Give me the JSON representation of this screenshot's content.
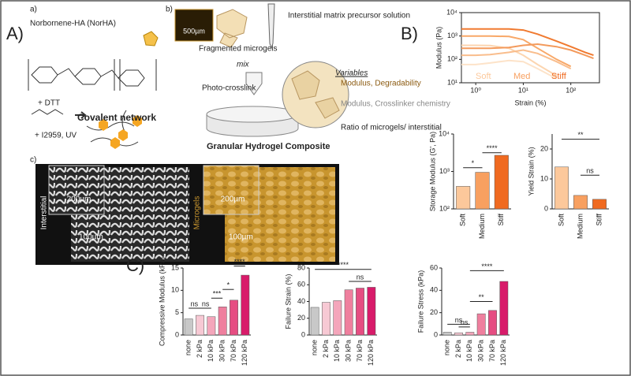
{
  "diagram": {
    "panel_A": "A)",
    "panel_a": "a)",
    "norha": "Norbornene-HA (NorHA)",
    "dtt": "+ DTT",
    "covalent": "Covalent network",
    "uv": "+ I2959, UV",
    "panel_b": "b)",
    "scale_500": "500µm",
    "fragmented": "Fragmented microgels",
    "mix": "mix",
    "precursor": "Interstitial matrix precursor solution",
    "photo": "Photo-crosslink",
    "variables": "Variables",
    "var_microgel": "Modulus, Degradability",
    "var_interstitial": "Modulus, Crosslinker chemistry",
    "var_ratio": "Ratio of microgels/ interstitial",
    "composite": "Granular Hydrogel Composite",
    "panel_c": "c)",
    "interstitial": "Interstitial",
    "inset_scale_1": "200µm",
    "scale_1": "100µm",
    "microgels": "Microgels",
    "inset_scale_2": "200µm",
    "scale_2": "100µm",
    "panel_B": "B)",
    "panel_C": "C)"
  },
  "chart_data": [
    {
      "type": "line",
      "xlabel": "Strain (%)",
      "ylabel": "Modulus (Pa)",
      "xscale": "log",
      "yscale": "log",
      "xlim": [
        0.5,
        400
      ],
      "ylim": [
        10,
        10000
      ],
      "xticks": [
        {
          "value": 1,
          "label": "10⁰"
        },
        {
          "value": 10,
          "label": "10¹"
        },
        {
          "value": 100,
          "label": "10²"
        }
      ],
      "yticks": [
        {
          "value": 10,
          "label": "10¹"
        },
        {
          "value": 100,
          "label": "10²"
        },
        {
          "value": 1000,
          "label": "10³"
        },
        {
          "value": 10000,
          "label": "10⁴"
        }
      ],
      "x": [
        0.5,
        1,
        2,
        5,
        10,
        20,
        50,
        100,
        200,
        300
      ],
      "series": [
        {
          "color": "#fcd5b0",
          "values": [
            400,
            400,
            390,
            300,
            150,
            60,
            20,
            null,
            null,
            null
          ]
        },
        {
          "color": "#fde3c9",
          "values": [
            60,
            60,
            70,
            90,
            80,
            40,
            15,
            null,
            null,
            null
          ]
        },
        {
          "color": "#f8a868",
          "values": [
            1000,
            1000,
            1000,
            950,
            700,
            300,
            100,
            50,
            null,
            null
          ]
        },
        {
          "color": "#f9bd8c",
          "values": [
            150,
            150,
            160,
            200,
            250,
            180,
            80,
            40,
            null,
            null
          ]
        },
        {
          "color": "#f07a30",
          "values": [
            2000,
            2000,
            2000,
            2000,
            1800,
            1200,
            600,
            350,
            200,
            150
          ]
        },
        {
          "color": "#f39a5c",
          "values": [
            300,
            300,
            300,
            320,
            400,
            450,
            350,
            250,
            150,
            110
          ]
        }
      ],
      "annotations": [
        {
          "text": "Soft",
          "color": "#fcc89b"
        },
        {
          "text": "Med",
          "color": "#f8a060"
        },
        {
          "text": "Stiff",
          "color": "#f06a20"
        }
      ]
    },
    {
      "type": "bar",
      "ylabel": "Storage Modulus (G', Pa)",
      "yscale": "log",
      "ylim": [
        100,
        10000
      ],
      "yticks": [
        {
          "value": 100,
          "label": "10²"
        },
        {
          "value": 1000,
          "label": "10³"
        },
        {
          "value": 10000,
          "label": "10⁴"
        }
      ],
      "categories": [
        "Soft",
        "Medium",
        "Stiff"
      ],
      "values": [
        400,
        950,
        2700
      ],
      "colors": [
        "#fcc89b",
        "#f8a060",
        "#f06a20"
      ],
      "annotations": [
        {
          "text": "*"
        },
        {
          "text": "****"
        }
      ]
    },
    {
      "type": "bar",
      "ylabel": "Yield Strain (%)",
      "ylim": [
        0,
        25
      ],
      "yticks": [
        0,
        10,
        20
      ],
      "categories": [
        "Soft",
        "Medium",
        "Stiff"
      ],
      "values": [
        14,
        4.5,
        3.2
      ],
      "colors": [
        "#fcc89b",
        "#f8a060",
        "#f06a20"
      ],
      "annotations": [
        {
          "text": "**"
        },
        {
          "text": "ns"
        }
      ]
    },
    {
      "type": "bar",
      "ylabel": "Compressive Modulus (kPa)",
      "ylim": [
        0,
        15
      ],
      "yticks": [
        0,
        5,
        10,
        15
      ],
      "categories": [
        "none",
        "2 kPa",
        "10 kPa",
        "30 kPa",
        "70 kPa",
        "120 kPa"
      ],
      "values": [
        3.6,
        4.4,
        4.1,
        6.3,
        7.8,
        13.4
      ],
      "colors": [
        "#c8c8c8",
        "#f7c9d4",
        "#f4a6bb",
        "#ef7f9e",
        "#e64d82",
        "#d81b6a"
      ],
      "annotations": [
        {
          "text": "ns"
        },
        {
          "text": "ns"
        },
        {
          "text": "***"
        },
        {
          "text": "*"
        },
        {
          "text": "****"
        }
      ]
    },
    {
      "type": "bar",
      "ylabel": "Failure Strain (%)",
      "ylim": [
        0,
        80
      ],
      "yticks": [
        0,
        20,
        40,
        60,
        80
      ],
      "categories": [
        "none",
        "2 kPa",
        "10 kPa",
        "30 kPa",
        "70 kPa",
        "120 kPa"
      ],
      "values": [
        33,
        39,
        41,
        54,
        56,
        57
      ],
      "colors": [
        "#c8c8c8",
        "#f7c9d4",
        "#f4a6bb",
        "#ef7f9e",
        "#e64d82",
        "#d81b6a"
      ],
      "annotations": [
        {
          "text": "****"
        },
        {
          "text": "ns"
        }
      ]
    },
    {
      "type": "bar",
      "ylabel": "Failure Stress (kPa)",
      "ylim": [
        0,
        60
      ],
      "yticks": [
        0,
        20,
        40,
        60
      ],
      "categories": [
        "none",
        "2 kPa",
        "10 kPa",
        "30 kPa",
        "70 kPa",
        "120 kPa"
      ],
      "values": [
        2.5,
        2,
        2.5,
        19,
        22,
        48
      ],
      "colors": [
        "#c8c8c8",
        "#f7c9d4",
        "#f4a6bb",
        "#ef7f9e",
        "#e64d82",
        "#d81b6a"
      ],
      "annotations": [
        {
          "text": "ns"
        },
        {
          "text": "ns"
        },
        {
          "text": "**"
        },
        {
          "text": "****"
        }
      ]
    }
  ]
}
